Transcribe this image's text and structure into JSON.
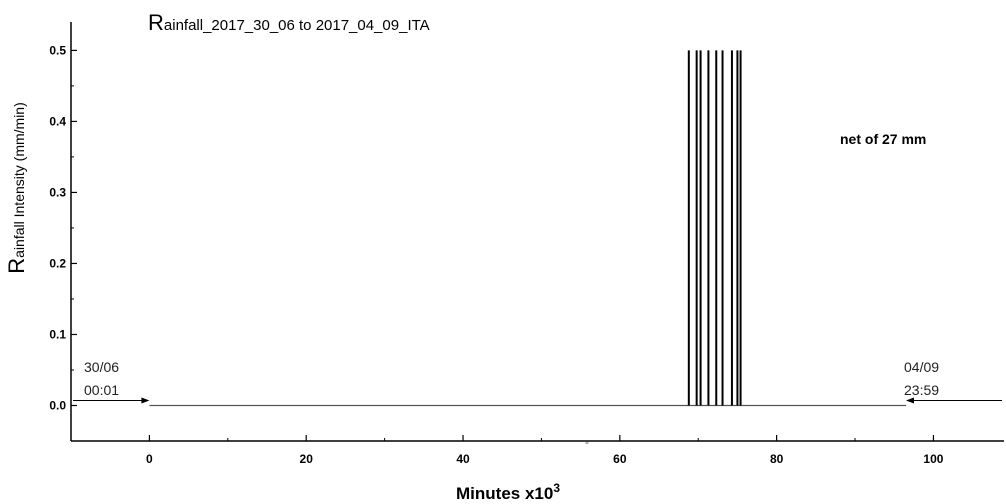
{
  "chart_data": {
    "type": "line",
    "title": {
      "initial": "R",
      "rest": "ainfall_2017_30_06 to 2017_04_09_ITA"
    },
    "ylabel": {
      "initial": "R",
      "rest": "ainfall Intensity (mm/min)"
    },
    "xlabel": {
      "main": "Minutes x10",
      "superscript": "3"
    },
    "xlim": [
      -10,
      109
    ],
    "ylim": [
      -0.05,
      0.54
    ],
    "xticks": [
      0,
      20,
      40,
      60,
      80,
      100
    ],
    "xtick_labels": [
      "0",
      "20",
      "40",
      "60",
      "80",
      "100"
    ],
    "yticks": [
      0.0,
      0.1,
      0.2,
      0.3,
      0.4,
      0.5
    ],
    "ytick_labels": [
      "0.0",
      "0.1",
      "0.2",
      "0.3",
      "0.4",
      "0.5"
    ],
    "grid": false,
    "series": [
      {
        "baseline": {
          "x": [
            0,
            96.5
          ],
          "y": 0.0
        },
        "pulses": [
          {
            "x": 68.8,
            "y": 0.5
          },
          {
            "x": 69.8,
            "y": 0.5
          },
          {
            "x": 70.3,
            "y": 0.5
          },
          {
            "x": 71.3,
            "y": 0.5
          },
          {
            "x": 72.3,
            "y": 0.5
          },
          {
            "x": 73.1,
            "y": 0.5
          },
          {
            "x": 74.3,
            "y": 0.5
          },
          {
            "x": 75.0,
            "y": 0.5
          },
          {
            "x": 75.4,
            "y": 0.5
          }
        ]
      }
    ],
    "annotations": {
      "net_total": "net of 27 mm",
      "start": {
        "date": "30/06",
        "time": "00:01",
        "x": 0
      },
      "end": {
        "date": "04/09",
        "time": "23:59",
        "x": 96.5
      }
    },
    "stray_mark": "-"
  }
}
